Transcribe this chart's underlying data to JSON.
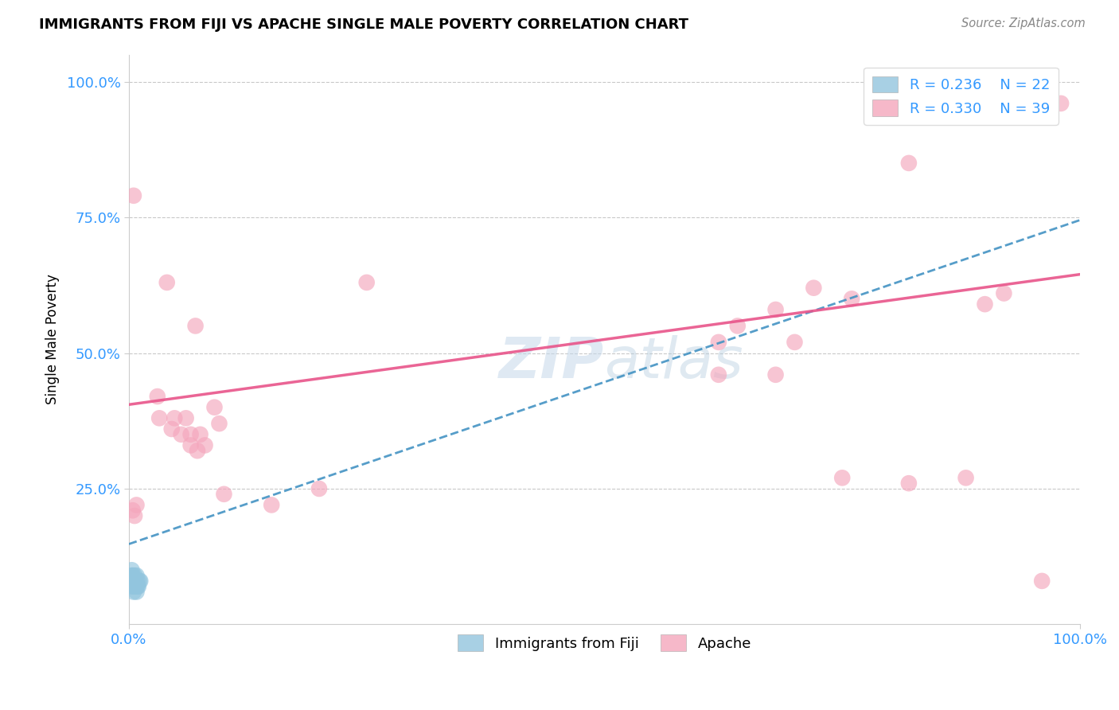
{
  "title": "IMMIGRANTS FROM FIJI VS APACHE SINGLE MALE POVERTY CORRELATION CHART",
  "source": "Source: ZipAtlas.com",
  "ylabel": "Single Male Poverty",
  "legend_label1": "Immigrants from Fiji",
  "legend_label2": "Apache",
  "r1": 0.236,
  "n1": 22,
  "r2": 0.33,
  "n2": 39,
  "watermark": "ZIPatlas",
  "blue_color": "#92c5de",
  "pink_color": "#f4a6bc",
  "blue_line_color": "#4393c3",
  "pink_line_color": "#e8548a",
  "blue_scatter": [
    [
      0.002,
      0.08
    ],
    [
      0.003,
      0.09
    ],
    [
      0.003,
      0.1
    ],
    [
      0.004,
      0.07
    ],
    [
      0.004,
      0.08
    ],
    [
      0.004,
      0.09
    ],
    [
      0.005,
      0.06
    ],
    [
      0.005,
      0.07
    ],
    [
      0.005,
      0.08
    ],
    [
      0.006,
      0.07
    ],
    [
      0.006,
      0.08
    ],
    [
      0.006,
      0.09
    ],
    [
      0.007,
      0.07
    ],
    [
      0.007,
      0.08
    ],
    [
      0.008,
      0.06
    ],
    [
      0.008,
      0.07
    ],
    [
      0.008,
      0.09
    ],
    [
      0.009,
      0.07
    ],
    [
      0.009,
      0.08
    ],
    [
      0.01,
      0.07
    ],
    [
      0.011,
      0.08
    ],
    [
      0.012,
      0.08
    ]
  ],
  "pink_scatter": [
    [
      0.004,
      0.21
    ],
    [
      0.006,
      0.2
    ],
    [
      0.008,
      0.22
    ],
    [
      0.03,
      0.42
    ],
    [
      0.032,
      0.38
    ],
    [
      0.045,
      0.36
    ],
    [
      0.048,
      0.38
    ],
    [
      0.055,
      0.35
    ],
    [
      0.06,
      0.38
    ],
    [
      0.065,
      0.33
    ],
    [
      0.065,
      0.35
    ],
    [
      0.072,
      0.32
    ],
    [
      0.075,
      0.35
    ],
    [
      0.08,
      0.33
    ],
    [
      0.09,
      0.4
    ],
    [
      0.095,
      0.37
    ],
    [
      0.07,
      0.55
    ],
    [
      0.04,
      0.63
    ],
    [
      0.005,
      0.79
    ],
    [
      0.25,
      0.63
    ],
    [
      0.62,
      0.52
    ],
    [
      0.64,
      0.55
    ],
    [
      0.68,
      0.58
    ],
    [
      0.7,
      0.52
    ],
    [
      0.72,
      0.62
    ],
    [
      0.76,
      0.6
    ],
    [
      0.62,
      0.46
    ],
    [
      0.68,
      0.46
    ],
    [
      0.75,
      0.27
    ],
    [
      0.82,
      0.26
    ],
    [
      0.88,
      0.27
    ],
    [
      0.9,
      0.59
    ],
    [
      0.92,
      0.61
    ],
    [
      0.96,
      0.08
    ],
    [
      0.98,
      0.96
    ],
    [
      0.82,
      0.85
    ],
    [
      0.15,
      0.22
    ],
    [
      0.1,
      0.24
    ],
    [
      0.2,
      0.25
    ]
  ],
  "blue_trend": [
    0.0,
    0.148,
    1.0,
    0.745
  ],
  "pink_trend": [
    0.0,
    0.405,
    1.0,
    0.645
  ],
  "ylim": [
    0.0,
    1.05
  ],
  "xlim": [
    0.0,
    1.0
  ]
}
